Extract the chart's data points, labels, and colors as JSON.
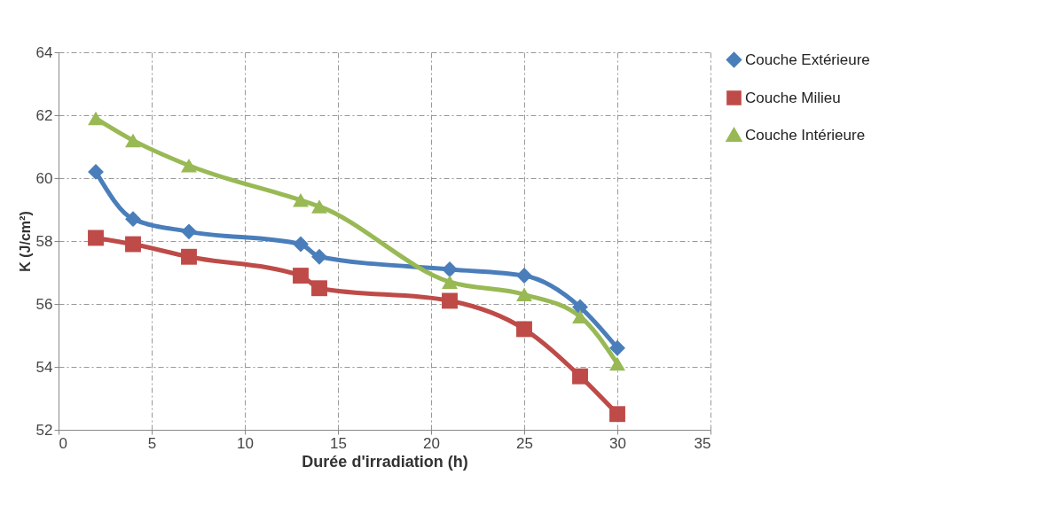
{
  "chart_data": {
    "type": "line",
    "xlabel": "Durée d'irradiation (h)",
    "ylabel": "K (J/cm²)",
    "x": [
      2,
      4,
      7,
      13,
      14,
      21,
      25,
      28,
      30
    ],
    "series": [
      {
        "name": "Couche  Extérieure",
        "color": "#4a7ebb",
        "marker": "diamond",
        "values": [
          60.2,
          58.7,
          58.3,
          57.9,
          57.5,
          57.1,
          56.9,
          55.9,
          54.6
        ]
      },
      {
        "name": "Couche Milieu",
        "color": "#be4b48",
        "marker": "square",
        "values": [
          58.1,
          57.9,
          57.5,
          56.9,
          56.5,
          56.1,
          55.2,
          53.7,
          52.5
        ]
      },
      {
        "name": "Couche Intérieure",
        "color": "#98b954",
        "marker": "triangle",
        "values": [
          61.9,
          61.2,
          60.4,
          59.3,
          59.1,
          56.7,
          56.3,
          55.6,
          54.1
        ]
      }
    ],
    "xlim": [
      0,
      35
    ],
    "xticks": [
      0,
      5,
      10,
      15,
      20,
      25,
      30,
      35
    ],
    "ylim": [
      52,
      64
    ],
    "yticks": [
      52,
      54,
      56,
      58,
      60,
      62,
      64
    ],
    "grid": true,
    "legend": "right",
    "line_style": "solid"
  }
}
